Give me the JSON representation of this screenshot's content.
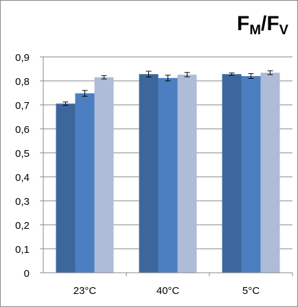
{
  "title": {
    "main1": "F",
    "sub1": "M",
    "sep": "/",
    "main2": "F",
    "sub2": "V"
  },
  "chart_data": {
    "type": "bar",
    "title": "FM/FV",
    "categories": [
      "23°C",
      "40°C",
      "5°C"
    ],
    "series": [
      {
        "values": [
          0.705,
          0.828,
          0.828
        ],
        "errors": [
          0.007,
          0.012,
          0.005
        ],
        "color": "#3d679c"
      },
      {
        "values": [
          0.748,
          0.812,
          0.82
        ],
        "errors": [
          0.012,
          0.012,
          0.01
        ],
        "color": "#4b7fc2"
      },
      {
        "values": [
          0.815,
          0.826,
          0.834
        ],
        "errors": [
          0.007,
          0.009,
          0.008
        ],
        "color": "#aebcd8"
      }
    ],
    "ylim": [
      0,
      0.9
    ],
    "yticks": [
      "0",
      "0,1",
      "0,2",
      "0,3",
      "0,4",
      "0,5",
      "0,6",
      "0,7",
      "0,8",
      "0,9"
    ],
    "grid": true
  }
}
